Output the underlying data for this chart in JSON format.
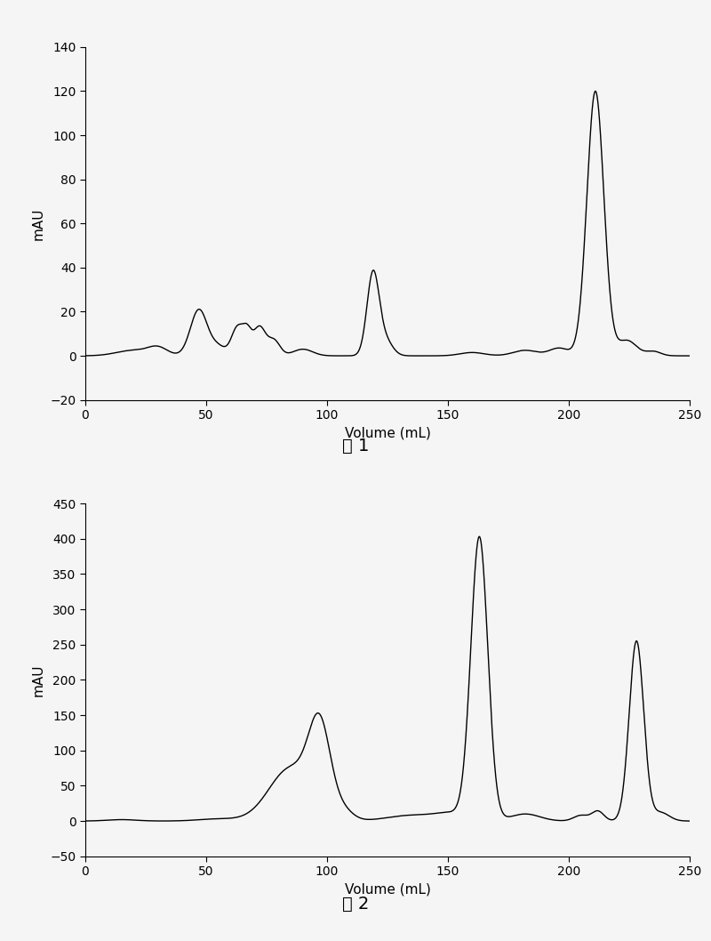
{
  "fig1": {
    "xlabel": "Volume (mL)",
    "ylabel": "mAU",
    "caption": "图 1",
    "xlim": [
      0,
      250
    ],
    "ylim": [
      -20,
      140
    ],
    "yticks": [
      -20,
      0,
      20,
      40,
      60,
      80,
      100,
      120,
      140
    ],
    "xticks": [
      0,
      50,
      100,
      150,
      200,
      250
    ],
    "line_color": "#000000",
    "bg_color": "#f5f5f5",
    "grid_color": "#999999"
  },
  "fig2": {
    "xlabel": "Volume (mL)",
    "ylabel": "mAU",
    "caption": "图 2",
    "xlim": [
      0,
      250
    ],
    "ylim": [
      -50,
      450
    ],
    "yticks": [
      -50,
      0,
      50,
      100,
      150,
      200,
      250,
      300,
      350,
      400,
      450
    ],
    "xticks": [
      0,
      50,
      100,
      150,
      200,
      250
    ],
    "line_color": "#000000",
    "bg_color": "#f5f5f5",
    "grid_color": "#999999"
  }
}
